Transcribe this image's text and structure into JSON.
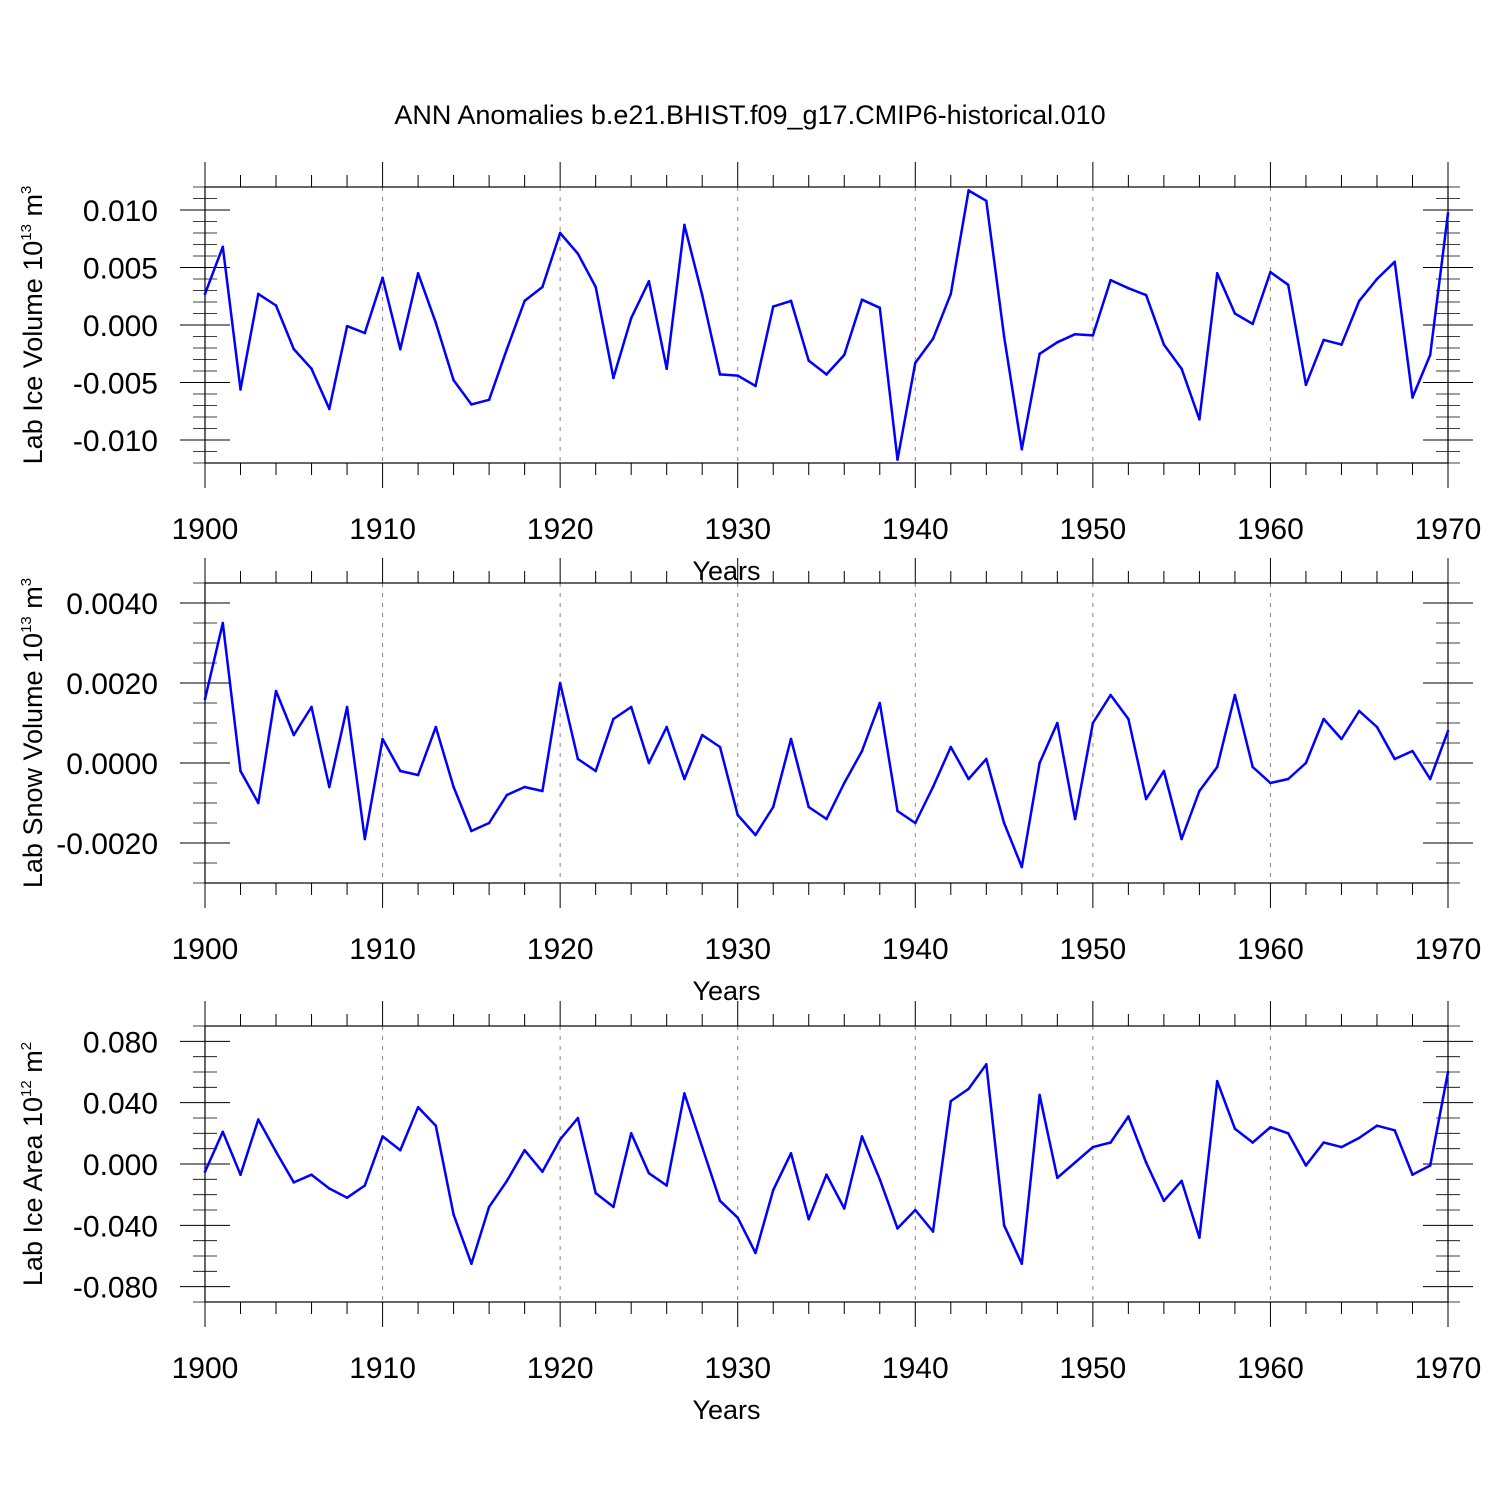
{
  "title": "ANN Anomalies b.e21.BHIST.f09_g17.CMIP6-historical.010",
  "colors": {
    "line": "#0000ff",
    "axis": "#000000",
    "grid": "#888888"
  },
  "chart_data": [
    {
      "type": "line",
      "name": "ice-volume",
      "ylabel": {
        "prefix": "Lab Ice Volume 10",
        "exp": "13",
        "unit": " m",
        "unit_exp": "3"
      },
      "xlabel": "Years",
      "xlim": [
        1900,
        1970
      ],
      "ylim": [
        -0.012,
        0.012
      ],
      "xticks": [
        1900,
        1910,
        1920,
        1930,
        1940,
        1950,
        1960,
        1970
      ],
      "yticks": [
        -0.01,
        -0.005,
        0.0,
        0.005,
        0.01
      ],
      "ytick_labels": [
        "-0.010",
        "-0.005",
        "0.000",
        "0.005",
        "0.010"
      ],
      "yminor": 0.001,
      "x_start": 1900,
      "values": [
        0.0027,
        0.0068,
        -0.0056,
        0.0027,
        0.0017,
        -0.0021,
        -0.0038,
        -0.0073,
        -0.0001,
        -0.0007,
        0.0041,
        -0.0021,
        0.0045,
        0.0002,
        -0.0048,
        -0.0069,
        -0.0065,
        -0.0021,
        0.0021,
        0.0033,
        0.008,
        0.0062,
        0.0033,
        -0.0046,
        0.0006,
        0.0038,
        -0.0038,
        0.0087,
        0.0026,
        -0.0043,
        -0.0044,
        -0.0053,
        0.0016,
        0.0021,
        -0.0031,
        -0.0043,
        -0.0026,
        0.0022,
        0.0015,
        -0.0117,
        -0.0033,
        -0.0012,
        0.0027,
        0.0117,
        0.0108,
        -0.001,
        -0.0108,
        -0.0025,
        -0.0015,
        -0.0008,
        -0.0009,
        0.0039,
        0.0032,
        0.0026,
        -0.0017,
        -0.0038,
        -0.0082,
        0.0045,
        0.001,
        0.0001,
        0.0046,
        0.0035,
        -0.0052,
        -0.0013,
        -0.0017,
        0.0021,
        0.004,
        0.0055,
        -0.0063,
        -0.0026,
        0.0097
      ]
    },
    {
      "type": "line",
      "name": "snow-volume",
      "ylabel": {
        "prefix": "Lab Snow Volume 10",
        "exp": "13",
        "unit": " m",
        "unit_exp": "3"
      },
      "xlabel": "Years",
      "xlim": [
        1900,
        1970
      ],
      "ylim": [
        -0.003,
        0.0045
      ],
      "xticks": [
        1900,
        1910,
        1920,
        1930,
        1940,
        1950,
        1960,
        1970
      ],
      "yticks": [
        -0.002,
        0.0,
        0.002,
        0.004
      ],
      "ytick_labels": [
        "-0.0020",
        "0.0000",
        "0.0020",
        "0.0040"
      ],
      "yminor": 0.0005,
      "x_start": 1900,
      "values": [
        0.0016,
        0.0035,
        -0.0002,
        -0.001,
        0.0018,
        0.0007,
        0.0014,
        -0.0006,
        0.0014,
        -0.0019,
        0.0006,
        -0.0002,
        -0.0003,
        0.0009,
        -0.0006,
        -0.0017,
        -0.0015,
        -0.0008,
        -0.0006,
        -0.0007,
        0.002,
        0.0001,
        -0.0002,
        0.0011,
        0.0014,
        0.0,
        0.0009,
        -0.0004,
        0.0007,
        0.0004,
        -0.0013,
        -0.0018,
        -0.0011,
        0.0006,
        -0.0011,
        -0.0014,
        -0.0005,
        0.0003,
        0.0015,
        -0.0012,
        -0.0015,
        -0.0006,
        0.0004,
        -0.0004,
        0.0001,
        -0.0015,
        -0.0026,
        0.0,
        0.001,
        -0.0014,
        0.001,
        0.0017,
        0.0011,
        -0.0009,
        -0.0002,
        -0.0019,
        -0.0007,
        -0.0001,
        0.0017,
        -0.0001,
        -0.0005,
        -0.0004,
        0.0,
        0.0011,
        0.0006,
        0.0013,
        0.0009,
        0.0001,
        0.0003,
        -0.0004,
        0.0008
      ]
    },
    {
      "type": "line",
      "name": "ice-area",
      "ylabel": {
        "prefix": "Lab Ice Area 10",
        "exp": "12",
        "unit": " m",
        "unit_exp": "2"
      },
      "xlabel": "Years",
      "xlim": [
        1900,
        1970
      ],
      "ylim": [
        -0.09,
        0.09
      ],
      "xticks": [
        1900,
        1910,
        1920,
        1930,
        1940,
        1950,
        1960,
        1970
      ],
      "yticks": [
        -0.08,
        -0.04,
        0.0,
        0.04,
        0.08
      ],
      "ytick_labels": [
        "-0.080",
        "-0.040",
        "0.000",
        "0.040",
        "0.080"
      ],
      "yminor": 0.01,
      "x_start": 1900,
      "values": [
        -0.005,
        0.021,
        -0.007,
        0.029,
        0.008,
        -0.012,
        -0.007,
        -0.016,
        -0.022,
        -0.014,
        0.018,
        0.009,
        0.037,
        0.025,
        -0.033,
        -0.065,
        -0.028,
        -0.011,
        0.009,
        -0.005,
        0.016,
        0.03,
        -0.019,
        -0.028,
        0.02,
        -0.006,
        -0.014,
        0.046,
        0.011,
        -0.024,
        -0.035,
        -0.058,
        -0.017,
        0.007,
        -0.036,
        -0.007,
        -0.029,
        0.018,
        -0.01,
        -0.042,
        -0.03,
        -0.044,
        0.041,
        0.049,
        0.065,
        -0.04,
        -0.065,
        0.045,
        -0.009,
        0.001,
        0.011,
        0.014,
        0.031,
        0.001,
        -0.024,
        -0.011,
        -0.048,
        0.054,
        0.023,
        0.014,
        0.024,
        0.02,
        -0.001,
        0.014,
        0.011,
        0.017,
        0.025,
        0.022,
        -0.007,
        -0.001,
        0.06
      ]
    }
  ]
}
